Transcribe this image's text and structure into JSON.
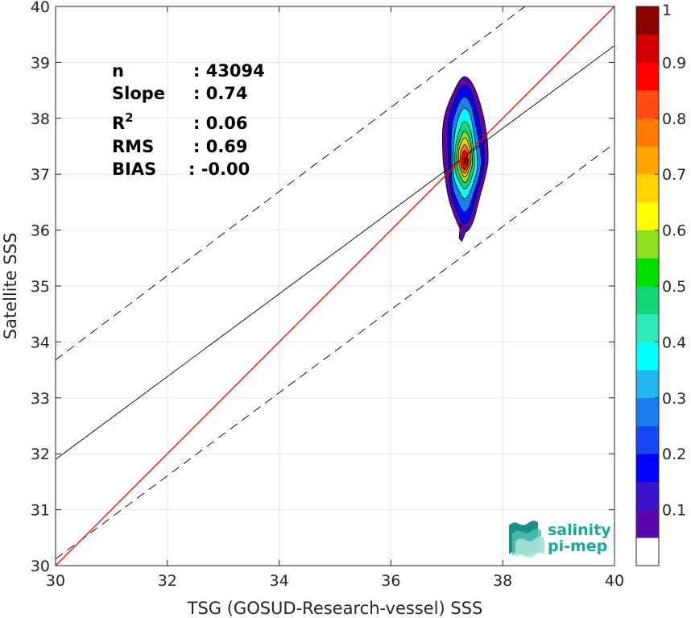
{
  "chart_data": {
    "type": "heatmap",
    "xlabel": "TSG (GOSUD-Research-vessel) SSS",
    "ylabel": "Satellite SSS",
    "xlim": [
      30,
      40
    ],
    "ylim": [
      30,
      40
    ],
    "xticks": [
      30,
      32,
      34,
      36,
      38,
      40
    ],
    "yticks": [
      30,
      31,
      32,
      33,
      34,
      35,
      36,
      37,
      38,
      39,
      40
    ],
    "grid": true,
    "stats": [
      {
        "label": "n",
        "value": ": 43094"
      },
      {
        "label": "Slope",
        "value": ": 0.74"
      },
      {
        "label": "R",
        "sup": "2",
        "value": ": 0.06"
      },
      {
        "label": "RMS",
        "value": ": 0.69"
      },
      {
        "label": "BIAS",
        "value": ": -0.00"
      }
    ],
    "lines": {
      "identity": {
        "color": "#ff0000",
        "x": [
          30,
          40
        ],
        "y": [
          30,
          40
        ]
      },
      "fit": {
        "color": "#000000",
        "x": [
          30,
          40
        ],
        "y": [
          31.9,
          39.3
        ]
      },
      "upper_band": {
        "color": "#000000",
        "dash": true,
        "x": [
          30,
          38.4
        ],
        "y": [
          33.68,
          40
        ]
      },
      "lower_band": {
        "color": "#000000",
        "dash": true,
        "x": [
          30,
          40
        ],
        "y": [
          30.12,
          37.55
        ]
      }
    },
    "density_contours": [
      {
        "level": 0.05,
        "cx": 37.32,
        "cy": 37.2,
        "rx": 0.4,
        "ry_up": 1.5,
        "ry_down": 1.2
      },
      {
        "level": 0.15,
        "cx": 37.32,
        "cy": 37.2,
        "rx": 0.32,
        "ry_up": 1.35,
        "ry_down": 1.05
      },
      {
        "level": 0.25,
        "cx": 37.32,
        "cy": 37.2,
        "rx": 0.27,
        "ry_up": 1.15,
        "ry_down": 0.85
      },
      {
        "level": 0.35,
        "cx": 37.32,
        "cy": 37.2,
        "rx": 0.22,
        "ry_up": 0.95,
        "ry_down": 0.62
      },
      {
        "level": 0.45,
        "cx": 37.32,
        "cy": 37.2,
        "rx": 0.18,
        "ry_up": 0.72,
        "ry_down": 0.45
      },
      {
        "level": 0.55,
        "cx": 37.32,
        "cy": 37.2,
        "rx": 0.14,
        "ry_up": 0.55,
        "ry_down": 0.34
      },
      {
        "level": 0.65,
        "cx": 37.32,
        "cy": 37.22,
        "rx": 0.11,
        "ry_up": 0.42,
        "ry_down": 0.26
      },
      {
        "level": 0.75,
        "cx": 37.32,
        "cy": 37.22,
        "rx": 0.085,
        "ry_up": 0.3,
        "ry_down": 0.2
      },
      {
        "level": 0.85,
        "cx": 37.32,
        "cy": 37.22,
        "rx": 0.06,
        "ry_up": 0.2,
        "ry_down": 0.14
      },
      {
        "level": 0.95,
        "cx": 37.33,
        "cy": 37.24,
        "rx": 0.035,
        "ry_up": 0.1,
        "ry_down": 0.07
      }
    ],
    "colorbar": {
      "ticks": [
        "0.1",
        "0.2",
        "0.3",
        "0.4",
        "0.5",
        "0.6",
        "0.7",
        "0.8",
        "0.9",
        "1"
      ],
      "range": [
        0,
        1
      ],
      "bins": [
        {
          "from": 0.0,
          "to": 0.05,
          "color": "#ffffff"
        },
        {
          "from": 0.05,
          "to": 0.1,
          "color": "#5a06a8"
        },
        {
          "from": 0.1,
          "to": 0.15,
          "color": "#3a12c9"
        },
        {
          "from": 0.15,
          "to": 0.2,
          "color": "#0000ff"
        },
        {
          "from": 0.2,
          "to": 0.25,
          "color": "#1548f0"
        },
        {
          "from": 0.25,
          "to": 0.3,
          "color": "#1a7fee"
        },
        {
          "from": 0.3,
          "to": 0.35,
          "color": "#22b6ee"
        },
        {
          "from": 0.35,
          "to": 0.4,
          "color": "#00ffff"
        },
        {
          "from": 0.4,
          "to": 0.45,
          "color": "#2ee8b5"
        },
        {
          "from": 0.45,
          "to": 0.5,
          "color": "#14d676"
        },
        {
          "from": 0.5,
          "to": 0.55,
          "color": "#00e000"
        },
        {
          "from": 0.55,
          "to": 0.6,
          "color": "#8de021"
        },
        {
          "from": 0.6,
          "to": 0.65,
          "color": "#ffff00"
        },
        {
          "from": 0.65,
          "to": 0.7,
          "color": "#ffd400"
        },
        {
          "from": 0.7,
          "to": 0.75,
          "color": "#ffa500"
        },
        {
          "from": 0.75,
          "to": 0.8,
          "color": "#ff7a00"
        },
        {
          "from": 0.8,
          "to": 0.85,
          "color": "#ff4a14"
        },
        {
          "from": 0.85,
          "to": 0.9,
          "color": "#ff0000"
        },
        {
          "from": 0.9,
          "to": 0.95,
          "color": "#d40000"
        },
        {
          "from": 0.95,
          "to": 1.0,
          "color": "#8a0000"
        }
      ]
    }
  },
  "logo": {
    "line1": "salinity",
    "line2": "pi-mep",
    "color": "#17a99a"
  }
}
